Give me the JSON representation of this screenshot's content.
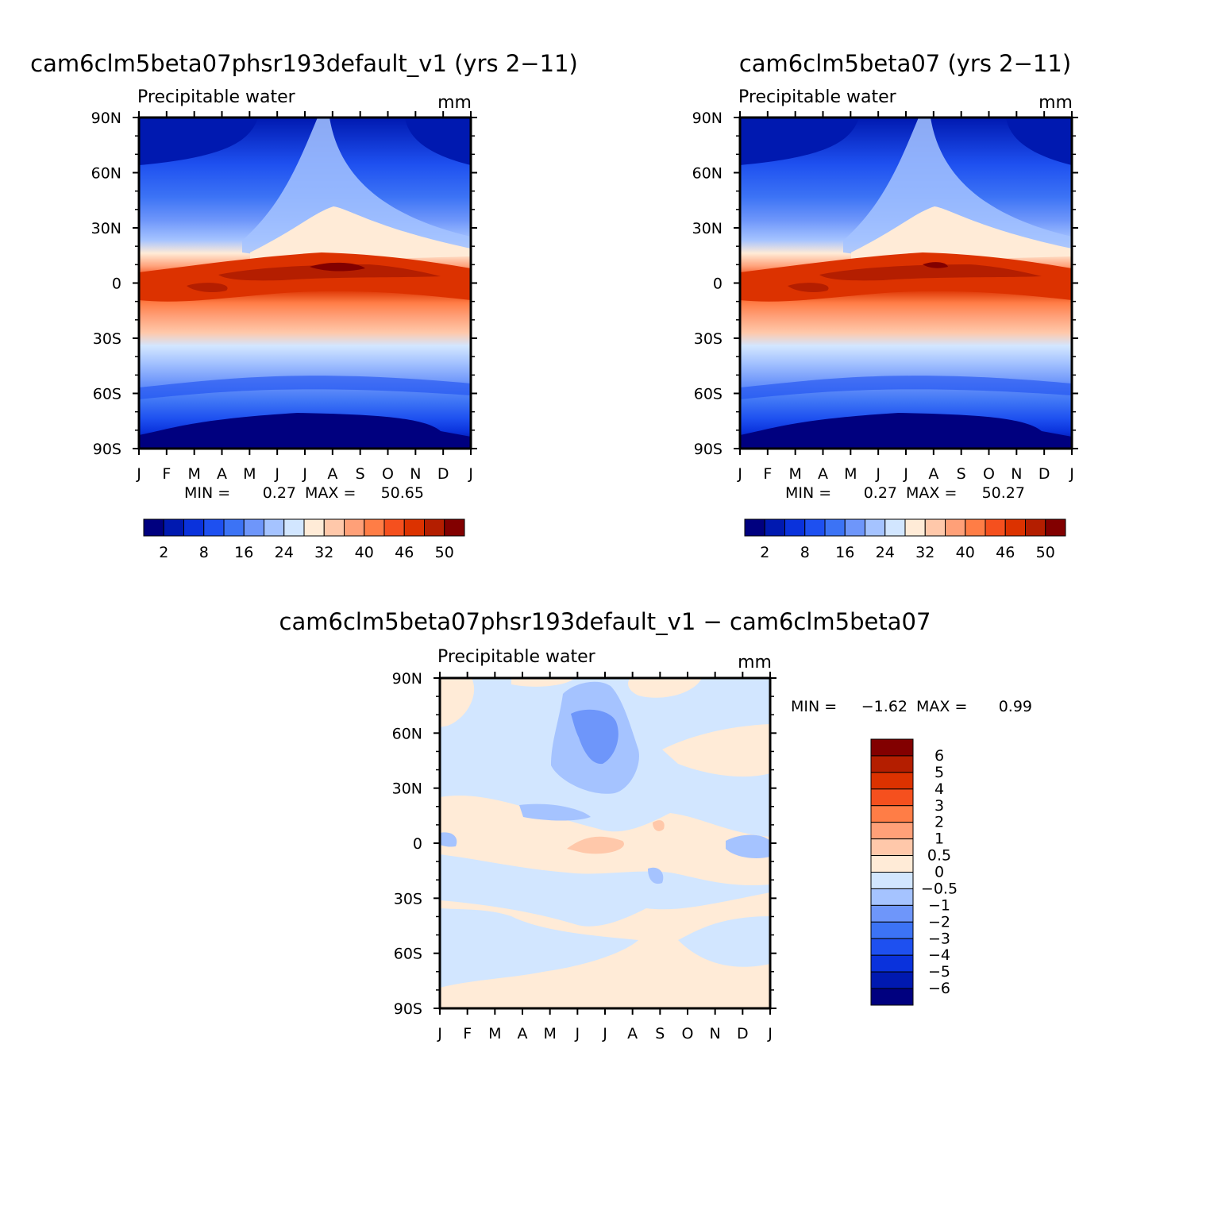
{
  "panels": [
    {
      "title": "cam6clm5beta07phsr193default_v1 (yrs 2−11)",
      "variable": "Precipitable water",
      "units": "mm",
      "min_label": "MIN =",
      "min_value": "0.27",
      "max_label": "MAX =",
      "max_value": "50.65"
    },
    {
      "title": "cam6clm5beta07 (yrs 2−11)",
      "variable": "Precipitable water",
      "units": "mm",
      "min_label": "MIN =",
      "min_value": "0.27",
      "max_label": "MAX =",
      "max_value": "50.27"
    },
    {
      "title": "cam6clm5beta07phsr193default_v1 − cam6clm5beta07",
      "variable": "Precipitable water",
      "units": "mm",
      "min_label": "MIN =",
      "min_value": "−1.62",
      "max_label": "MAX =",
      "max_value": "0.99"
    }
  ],
  "colors": {
    "abs_palette": [
      "#00007f",
      "#0019b0",
      "#0a32dc",
      "#1e50f0",
      "#3c73f5",
      "#6e96fa",
      "#a5c3ff",
      "#d2e6ff",
      "#ffebd7",
      "#ffc8aa",
      "#ffa078",
      "#ff7d46",
      "#f5501e",
      "#dc3200",
      "#b41e00",
      "#820000"
    ],
    "diff_palette": [
      "#00007f",
      "#0019b0",
      "#0a32dc",
      "#1e50f0",
      "#3c73f5",
      "#6e96fa",
      "#a5c3ff",
      "#d2e6ff",
      "#ffebd7",
      "#ffc8aa",
      "#ffa078",
      "#ff7d46",
      "#f5501e",
      "#dc3200",
      "#b41e00",
      "#820000"
    ]
  },
  "chart_data": [
    {
      "type": "heatmap",
      "title": "cam6clm5beta07phsr193default_v1 (yrs 2−11)",
      "x_ticks": [
        "J",
        "F",
        "M",
        "A",
        "M",
        "J",
        "J",
        "A",
        "S",
        "O",
        "N",
        "D",
        "J"
      ],
      "y_ticks": [
        "90N",
        "60N",
        "30N",
        "0",
        "30S",
        "60S",
        "90S"
      ],
      "y_range": [
        -90,
        90
      ],
      "colorbar_labels": [
        "2",
        "8",
        "16",
        "24",
        "32",
        "40",
        "46",
        "50"
      ],
      "min": 0.27,
      "max": 50.65
    },
    {
      "type": "heatmap",
      "title": "cam6clm5beta07 (yrs 2−11)",
      "x_ticks": [
        "J",
        "F",
        "M",
        "A",
        "M",
        "J",
        "J",
        "A",
        "S",
        "O",
        "N",
        "D",
        "J"
      ],
      "y_ticks": [
        "90N",
        "60N",
        "30N",
        "0",
        "30S",
        "60S",
        "90S"
      ],
      "y_range": [
        -90,
        90
      ],
      "colorbar_labels": [
        "2",
        "8",
        "16",
        "24",
        "32",
        "40",
        "46",
        "50"
      ],
      "min": 0.27,
      "max": 50.27
    },
    {
      "type": "heatmap",
      "title": "cam6clm5beta07phsr193default_v1 − cam6clm5beta07",
      "x_ticks": [
        "J",
        "F",
        "M",
        "A",
        "M",
        "J",
        "J",
        "A",
        "S",
        "O",
        "N",
        "D",
        "J"
      ],
      "y_ticks": [
        "90N",
        "60N",
        "30N",
        "0",
        "30S",
        "60S",
        "90S"
      ],
      "y_range": [
        -90,
        90
      ],
      "colorbar_labels": [
        "6",
        "5",
        "4",
        "3",
        "2",
        "1",
        "0.5",
        "0",
        "−0.5",
        "−1",
        "−2",
        "−3",
        "−4",
        "−5",
        "−6"
      ],
      "min": -1.62,
      "max": 0.99
    }
  ]
}
